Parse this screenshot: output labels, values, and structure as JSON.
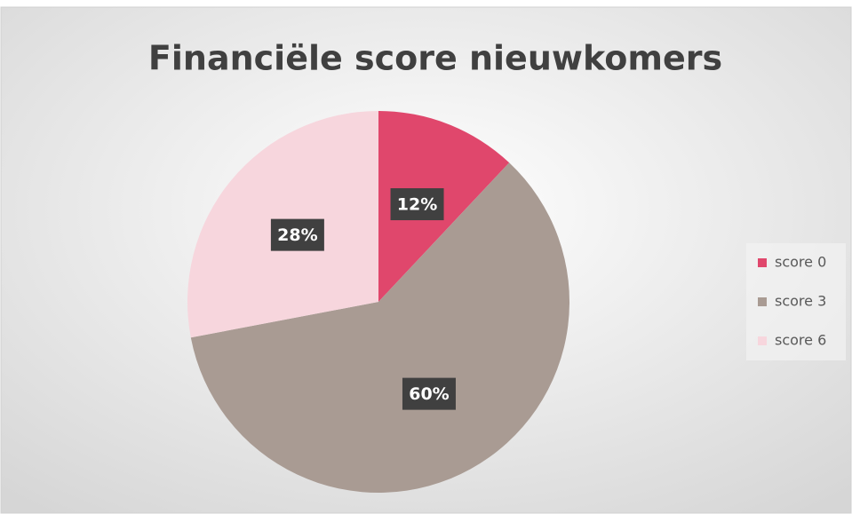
{
  "chart_data": {
    "type": "pie",
    "title": "Financiële score nieuwkomers",
    "categories": [
      "score 0",
      "score 3",
      "score 6"
    ],
    "values": [
      12,
      60,
      28
    ],
    "value_labels": [
      "12%",
      "60%",
      "28%"
    ],
    "colors": [
      "#e0476c",
      "#a99b93",
      "#f7d6dd"
    ],
    "legend": "right"
  }
}
